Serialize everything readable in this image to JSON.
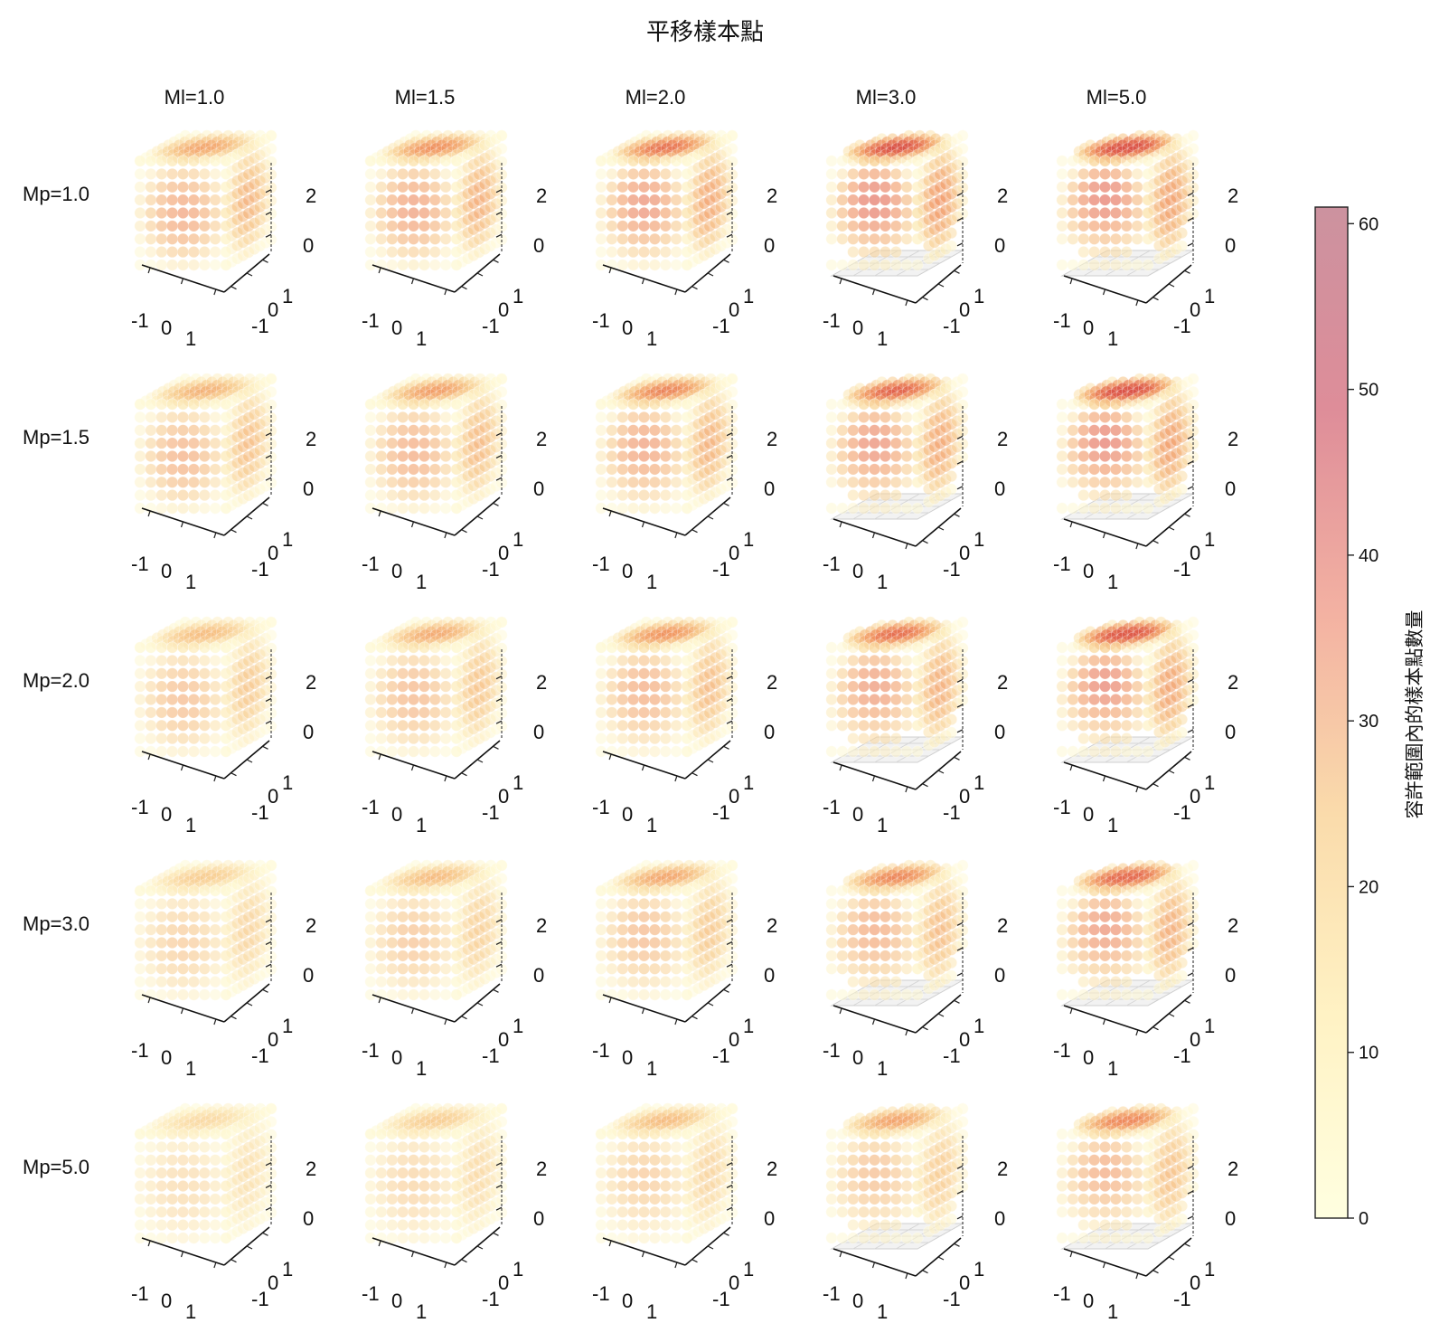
{
  "chart_data": {
    "type": "scatter",
    "subtype": "3d-scatter-grid",
    "title": "平移樣本點",
    "columns": [
      {
        "param": "Ml",
        "value": 1.0,
        "label": "Ml=1.0"
      },
      {
        "param": "Ml",
        "value": 1.5,
        "label": "Ml=1.5"
      },
      {
        "param": "Ml",
        "value": 2.0,
        "label": "Ml=2.0"
      },
      {
        "param": "Ml",
        "value": 3.0,
        "label": "Ml=3.0"
      },
      {
        "param": "Ml",
        "value": 5.0,
        "label": "Ml=5.0"
      }
    ],
    "rows": [
      {
        "param": "Mp",
        "value": 1.0,
        "label": "Mp=1.0"
      },
      {
        "param": "Mp",
        "value": 1.5,
        "label": "Mp=1.5"
      },
      {
        "param": "Mp",
        "value": 2.0,
        "label": "Mp=2.0"
      },
      {
        "param": "Mp",
        "value": 3.0,
        "label": "Mp=3.0"
      },
      {
        "param": "Mp",
        "value": 5.0,
        "label": "Mp=5.0"
      }
    ],
    "axes_ticks": {
      "x": [
        "-1",
        "0",
        "1"
      ],
      "y": [
        "-1",
        "0",
        "1"
      ],
      "z": [
        "0",
        "2"
      ]
    },
    "approx_max_count": [
      [
        42,
        44,
        47,
        52,
        50
      ],
      [
        38,
        40,
        43,
        47,
        50
      ],
      [
        34,
        36,
        39,
        44,
        48
      ],
      [
        28,
        31,
        34,
        39,
        44
      ],
      [
        22,
        25,
        28,
        32,
        37
      ]
    ],
    "colorbar": {
      "label": "容許範圍內的樣本點數量",
      "min": 0,
      "max": 61,
      "ticks": [
        "0",
        "10",
        "20",
        "30",
        "40",
        "50",
        "60"
      ],
      "colormap": "YlOrRd",
      "alpha": 0.45
    },
    "grid": true,
    "legend": "none"
  }
}
